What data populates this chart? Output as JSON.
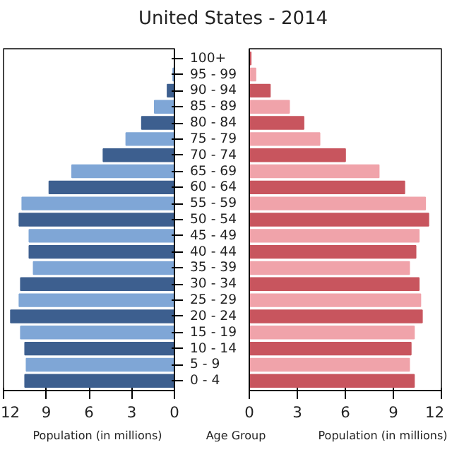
{
  "chart_data": [
    {
      "type": "bar",
      "orientation": "horizontal",
      "title": "United States - 2014",
      "xlabel": "Population (in millions)",
      "ylabel": "Age Group",
      "categories": [
        "100+",
        "95 - 99",
        "90 - 94",
        "85 - 89",
        "80 - 84",
        "75 - 79",
        "70 - 74",
        "65 - 69",
        "60 - 64",
        "55 - 59",
        "50 - 54",
        "45 - 49",
        "40 - 44",
        "35 - 39",
        "30 - 34",
        "25 - 29",
        "20 - 24",
        "15 - 19",
        "10 - 14",
        "5 - 9",
        "0 - 4"
      ],
      "values": [
        0.0,
        0.1,
        0.5,
        1.4,
        2.3,
        3.4,
        5.0,
        7.2,
        8.8,
        10.7,
        10.9,
        10.2,
        10.2,
        9.9,
        10.8,
        10.9,
        11.5,
        10.8,
        10.5,
        10.4,
        10.5
      ],
      "colors": [
        "#3d5f8f",
        "#7fa6d6",
        "#3d5f8f",
        "#7fa6d6",
        "#3d5f8f",
        "#7fa6d6",
        "#3d5f8f",
        "#7fa6d6",
        "#3d5f8f",
        "#7fa6d6",
        "#3d5f8f",
        "#7fa6d6",
        "#3d5f8f",
        "#7fa6d6",
        "#3d5f8f",
        "#7fa6d6",
        "#3d5f8f",
        "#7fa6d6",
        "#3d5f8f",
        "#7fa6d6",
        "#3d5f8f"
      ],
      "xlim": [
        12,
        0
      ],
      "xticks": [
        12,
        9,
        6,
        3,
        0
      ]
    },
    {
      "type": "bar",
      "orientation": "horizontal",
      "xlabel": "Population (in millions)",
      "tick_labels": "x",
      "values": [
        0.1,
        0.4,
        1.3,
        2.5,
        3.4,
        4.4,
        6.0,
        8.1,
        9.7,
        11.0,
        11.2,
        10.6,
        10.4,
        10.0,
        10.6,
        10.7,
        10.8,
        10.3,
        10.1,
        10.0,
        10.3
      ],
      "colors": [
        "#c8555e",
        "#f0a3aa",
        "#c8555e",
        "#f0a3aa",
        "#c8555e",
        "#f0a3aa",
        "#c8555e",
        "#f0a3aa",
        "#c8555e",
        "#f0a3aa",
        "#c8555e",
        "#f0a3aa",
        "#c8555e",
        "#f0a3aa",
        "#c8555e",
        "#f0a3aa",
        "#c8555e",
        "#f0a3aa",
        "#c8555e",
        "#f0a3aa",
        "#c8555e"
      ],
      "xlim": [
        0,
        12
      ],
      "xticks": [
        0,
        3,
        6,
        9,
        12
      ]
    }
  ]
}
